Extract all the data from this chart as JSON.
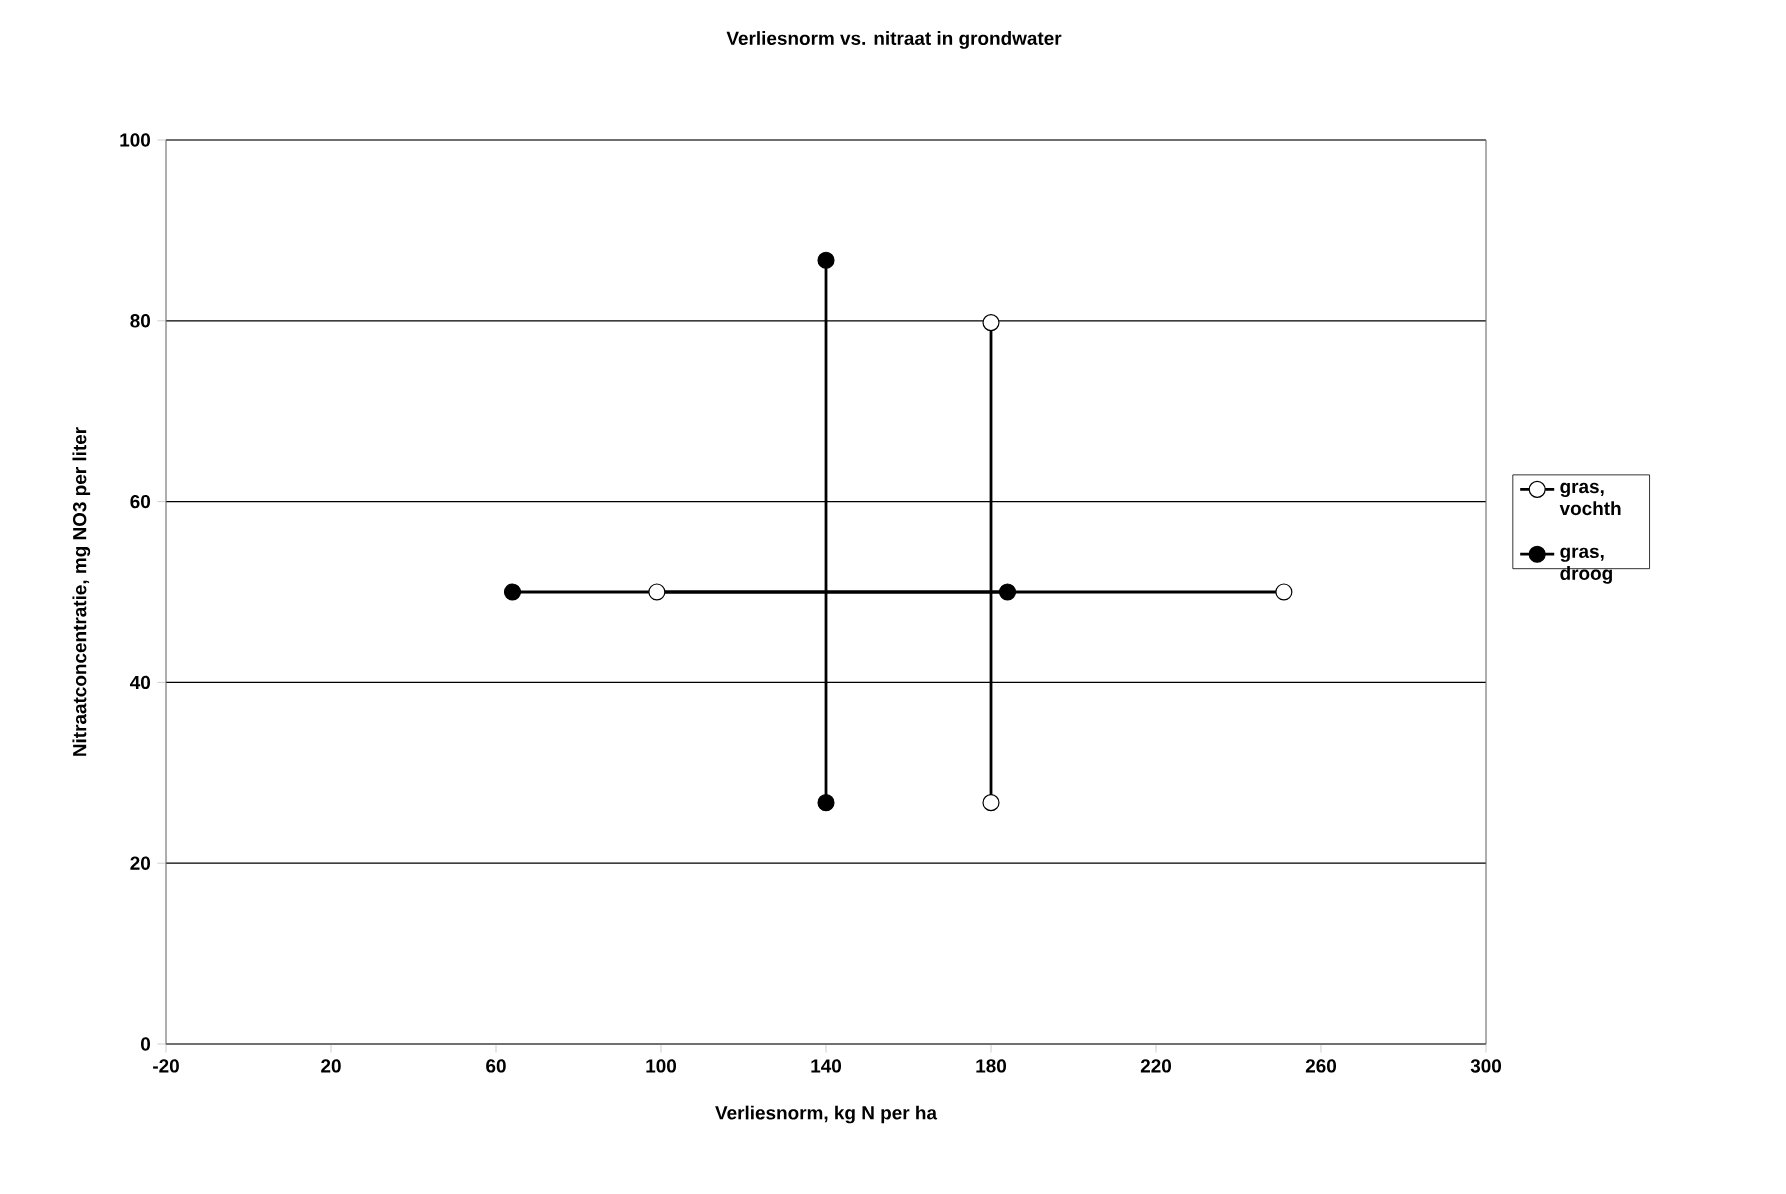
{
  "chart_data": {
    "type": "line",
    "title": "Verliesnorm vs. nitraat in grondwater",
    "xlabel": "Verliesnorm, kg N per ha",
    "ylabel": "Nitraatconcentratie, mg NO3 per liter",
    "xlim": [
      -20,
      300
    ],
    "xticks": [
      -20,
      20,
      60,
      100,
      140,
      180,
      220,
      260,
      300
    ],
    "ylim": [
      0,
      100
    ],
    "yticks": [
      0,
      20,
      40,
      60,
      80,
      100
    ],
    "grid": "y",
    "legend": "right",
    "marker": "circle",
    "series": [
      {
        "name": "gras, vochth",
        "color": "#000000",
        "x": [
          99,
          251,
          null,
          180,
          180
        ],
        "values": [
          50,
          50,
          null,
          26.7,
          79.8
        ]
      },
      {
        "name": "gras, droog",
        "color": "#000000",
        "x": [
          64,
          184,
          null,
          140,
          140
        ],
        "values": [
          50,
          50,
          null,
          26.7,
          86.7
        ]
      }
    ]
  }
}
